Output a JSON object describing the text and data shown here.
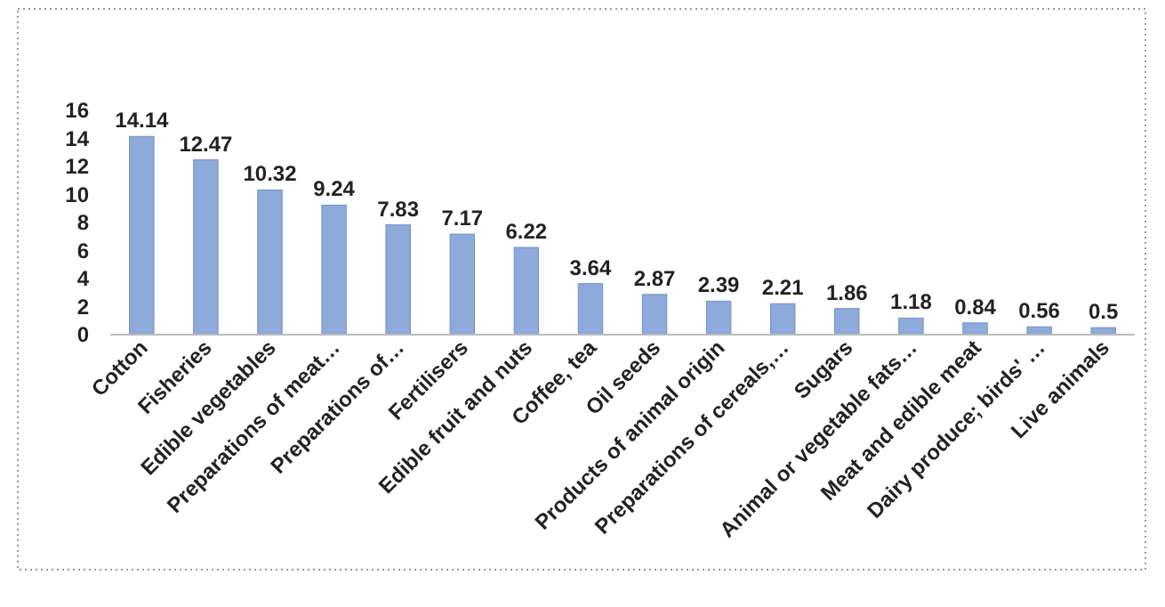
{
  "chart_data": {
    "type": "bar",
    "categories": [
      "Cotton",
      "Fisheries",
      "Edible vegetables",
      "Preparations of meat…",
      "Preparations of…",
      "Fertilisers",
      "Edible fruit and nuts",
      "Coffee, tea",
      "Oil seeds",
      "Products of animal origin",
      "Preparations of cereals,…",
      "Sugars",
      "Animal or vegetable fats…",
      "Meat and edible meat",
      "Dairy produce; birds' …",
      "Live animals"
    ],
    "values": [
      14.14,
      12.47,
      10.32,
      9.24,
      7.83,
      7.17,
      6.22,
      3.64,
      2.87,
      2.39,
      2.21,
      1.86,
      1.18,
      0.84,
      0.56,
      0.5
    ],
    "color": "#8eaadb",
    "ylim": [
      0,
      16
    ],
    "yticks": [
      0,
      2,
      4,
      6,
      8,
      10,
      12,
      14,
      16
    ],
    "data_labels": true,
    "grid": false
  }
}
